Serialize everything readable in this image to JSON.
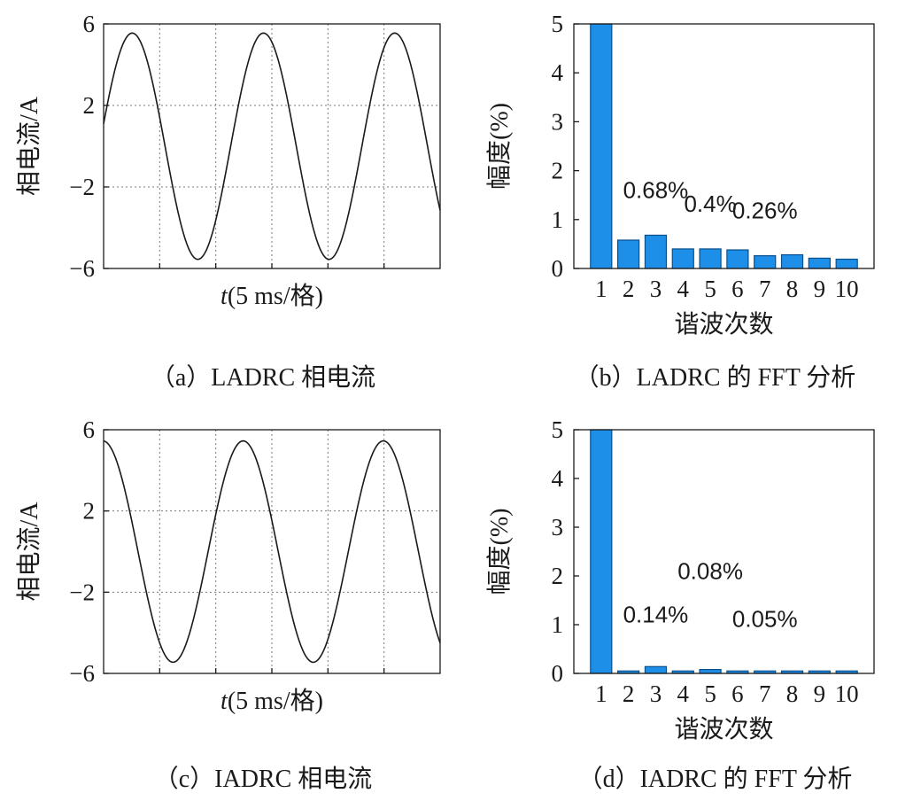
{
  "colors": {
    "bar": "#1e8fe8",
    "bar_stroke": "#0a4f8c",
    "line": "#1a1a1a",
    "grid": "#7a7a7a"
  },
  "chart_data": [
    {
      "panel": "a",
      "type": "line",
      "caption": "（a）LADRC 相电流",
      "ylabel": "相电流/A",
      "xlabel_italic": "t",
      "xlabel_rest": "(5 ms/格)",
      "ylim": [
        -6,
        6
      ],
      "yticks": [
        6,
        2,
        -2,
        -6
      ],
      "ytick_labels": [
        "6",
        "2",
        "−2",
        "−6"
      ],
      "x_range_ms": [
        0,
        30
      ],
      "x_grid_ms": [
        5,
        10,
        15,
        20,
        25
      ],
      "grid": true,
      "series": [
        {
          "amplitude": 5.55,
          "period_ms": 11.7,
          "x_at_zero_ms": 0.5,
          "phase_rad": 0.2
        }
      ]
    },
    {
      "panel": "b",
      "type": "bar",
      "caption": "（b）LADRC 的 FFT 分析",
      "ylabel": "幅度(%)",
      "xlabel": "谐波次数",
      "categories": [
        "1",
        "2",
        "3",
        "4",
        "5",
        "6",
        "7",
        "8",
        "9",
        "10"
      ],
      "values": [
        5.0,
        0.58,
        0.68,
        0.4,
        0.4,
        0.38,
        0.26,
        0.28,
        0.21,
        0.19
      ],
      "ylim": [
        0,
        5
      ],
      "yticks": [
        "0",
        "1",
        "2",
        "3",
        "4",
        "5"
      ],
      "annotations": [
        {
          "text": "0.68%",
          "category": "3",
          "value": 0.68
        },
        {
          "text": "0.4%",
          "category": "5",
          "value": 0.4
        },
        {
          "text": "0.26%",
          "category": "7",
          "value": 0.26
        }
      ]
    },
    {
      "panel": "c",
      "type": "line",
      "caption": "（c）IADRC 相电流",
      "ylabel": "相电流/A",
      "xlabel_italic": "t",
      "xlabel_rest": "(5 ms/格)",
      "ylim": [
        -6,
        6
      ],
      "yticks": [
        6,
        2,
        -2,
        -6
      ],
      "ytick_labels": [
        "6",
        "2",
        "−2",
        "−6"
      ],
      "x_range_ms": [
        0,
        30
      ],
      "x_grid_ms": [
        5,
        10,
        15,
        20,
        25
      ],
      "grid": true,
      "series": [
        {
          "amplitude": 5.45,
          "period_ms": 12.5,
          "x_at_zero_ms": 0.5,
          "phase_rad": 1.6
        }
      ]
    },
    {
      "panel": "d",
      "type": "bar",
      "caption": "（d）IADRC 的 FFT 分析",
      "ylabel": "幅度(%)",
      "xlabel": "谐波次数",
      "categories": [
        "1",
        "2",
        "3",
        "4",
        "5",
        "6",
        "7",
        "8",
        "9",
        "10"
      ],
      "values": [
        5.0,
        0.05,
        0.14,
        0.05,
        0.08,
        0.05,
        0.05,
        0.05,
        0.05,
        0.05
      ],
      "ylim": [
        0,
        5
      ],
      "yticks": [
        "0",
        "1",
        "2",
        "3",
        "4",
        "5"
      ],
      "annotations": [
        {
          "text": "0.14%",
          "category": "3",
          "value": 0.14
        },
        {
          "text": "0.08%",
          "category": "5",
          "value": 0.08
        },
        {
          "text": "0.05%",
          "category": "7",
          "value": 0.05
        }
      ]
    }
  ]
}
